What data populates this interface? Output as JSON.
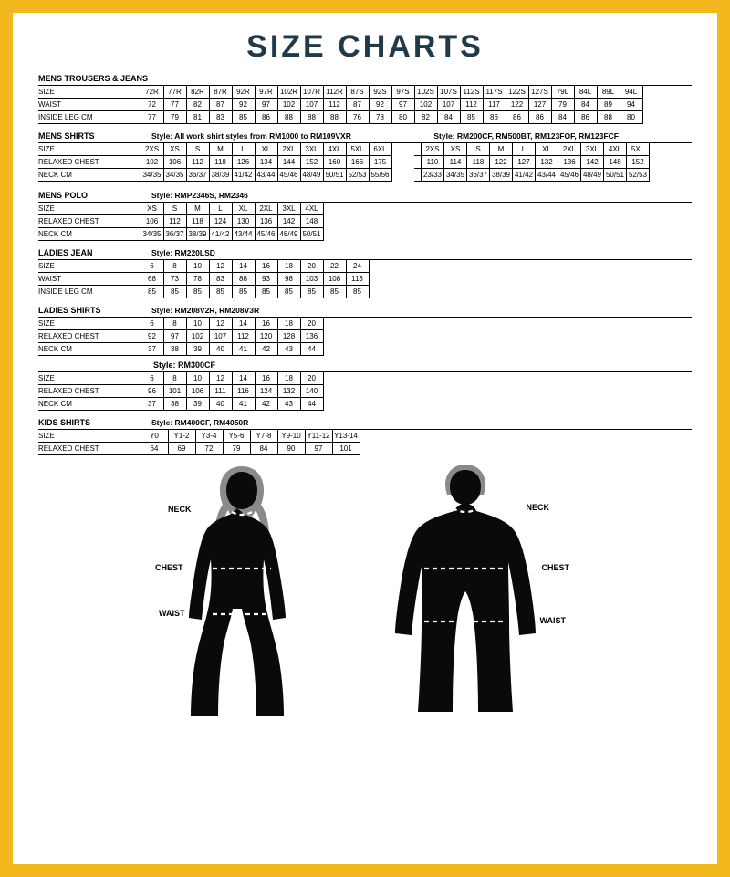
{
  "title": "SIZE CHARTS",
  "colors": {
    "border": "#f4b81f",
    "page_bg": "#ffffff",
    "title": "#203a4a",
    "line": "#000000",
    "silhouette": "#0a0a0a",
    "hair": "#8b8a8a",
    "dash": "#ffffff"
  },
  "mens_trousers": {
    "title": "MENS TROUSERS & JEANS",
    "rows": [
      {
        "label": "SIZE",
        "vals": [
          "72R",
          "77R",
          "82R",
          "87R",
          "92R",
          "97R",
          "102R",
          "107R",
          "112R",
          "87S",
          "92S",
          "97S",
          "102S",
          "107S",
          "112S",
          "117S",
          "122S",
          "127S",
          "79L",
          "84L",
          "89L",
          "94L"
        ]
      },
      {
        "label": "WAIST",
        "vals": [
          "72",
          "77",
          "82",
          "87",
          "92",
          "97",
          "102",
          "107",
          "112",
          "87",
          "92",
          "97",
          "102",
          "107",
          "112",
          "117",
          "122",
          "127",
          "79",
          "84",
          "89",
          "94"
        ]
      },
      {
        "label": "INSIDE LEG CM",
        "vals": [
          "77",
          "79",
          "81",
          "83",
          "85",
          "86",
          "88",
          "88",
          "88",
          "76",
          "78",
          "80",
          "82",
          "84",
          "85",
          "86",
          "86",
          "86",
          "84",
          "86",
          "88",
          "80"
        ]
      }
    ]
  },
  "mens_shirts": {
    "title": "MENS SHIRTS",
    "style1": "Style: All work shirt styles from RM1000 to RM109VXR",
    "style2": "Style: RM200CF, RM500BT, RM123FOF, RM123FCF",
    "table1": [
      {
        "label": "SIZE",
        "vals": [
          "2XS",
          "XS",
          "S",
          "M",
          "L",
          "XL",
          "2XL",
          "3XL",
          "4XL",
          "5XL",
          "6XL"
        ]
      },
      {
        "label": "RELAXED CHEST",
        "vals": [
          "102",
          "106",
          "112",
          "118",
          "126",
          "134",
          "144",
          "152",
          "160",
          "166",
          "175"
        ]
      },
      {
        "label": "NECK CM",
        "vals": [
          "34/35",
          "34/35",
          "36/37",
          "38/39",
          "41/42",
          "43/44",
          "45/46",
          "48/49",
          "50/51",
          "52/53",
          "55/56"
        ]
      }
    ],
    "table2": [
      {
        "label": "",
        "vals": [
          "2XS",
          "XS",
          "S",
          "M",
          "L",
          "XL",
          "2XL",
          "3XL",
          "4XL",
          "5XL"
        ]
      },
      {
        "label": "",
        "vals": [
          "110",
          "114",
          "118",
          "122",
          "127",
          "132",
          "136",
          "142",
          "148",
          "152"
        ]
      },
      {
        "label": "",
        "vals": [
          "23/33",
          "34/35",
          "36/37",
          "38/39",
          "41/42",
          "43/44",
          "45/46",
          "48/49",
          "50/51",
          "52/53"
        ]
      }
    ]
  },
  "mens_polo": {
    "title": "MENS POLO",
    "style": "Style: RMP2346S, RM2346",
    "rows": [
      {
        "label": "SIZE",
        "vals": [
          "XS",
          "S",
          "M",
          "L",
          "XL",
          "2XL",
          "3XL",
          "4XL"
        ]
      },
      {
        "label": "RELAXED CHEST",
        "vals": [
          "106",
          "112",
          "118",
          "124",
          "130",
          "136",
          "142",
          "148"
        ]
      },
      {
        "label": "NECK CM",
        "vals": [
          "34/35",
          "36/37",
          "38/39",
          "41/42",
          "43/44",
          "45/46",
          "48/49",
          "50/51"
        ]
      }
    ]
  },
  "ladies_jean": {
    "title": "LADIES JEAN",
    "style": "Style: RM220LSD",
    "rows": [
      {
        "label": "SIZE",
        "vals": [
          "6",
          "8",
          "10",
          "12",
          "14",
          "16",
          "18",
          "20",
          "22",
          "24"
        ]
      },
      {
        "label": "WAIST",
        "vals": [
          "68",
          "73",
          "78",
          "83",
          "88",
          "93",
          "98",
          "103",
          "108",
          "113"
        ]
      },
      {
        "label": "INSIDE LEG CM",
        "vals": [
          "85",
          "85",
          "85",
          "85",
          "85",
          "85",
          "85",
          "85",
          "85",
          "85"
        ]
      }
    ]
  },
  "ladies_shirts": {
    "title": "LADIES SHIRTS",
    "style1": "Style: RM208V2R, RM208V3R",
    "rows1": [
      {
        "label": "SIZE",
        "vals": [
          "6",
          "8",
          "10",
          "12",
          "14",
          "16",
          "18",
          "20"
        ]
      },
      {
        "label": "RELAXED CHEST",
        "vals": [
          "92",
          "97",
          "102",
          "107",
          "112",
          "120",
          "128",
          "136"
        ]
      },
      {
        "label": "NECK CM",
        "vals": [
          "37",
          "38",
          "39",
          "40",
          "41",
          "42",
          "43",
          "44"
        ]
      }
    ],
    "style2": "Style: RM300CF",
    "rows2": [
      {
        "label": "SIZE",
        "vals": [
          "6",
          "8",
          "10",
          "12",
          "14",
          "16",
          "18",
          "20"
        ]
      },
      {
        "label": "RELAXED CHEST",
        "vals": [
          "96",
          "101",
          "106",
          "111",
          "116",
          "124",
          "132",
          "140"
        ]
      },
      {
        "label": "NECK CM",
        "vals": [
          "37",
          "38",
          "39",
          "40",
          "41",
          "42",
          "43",
          "44"
        ]
      }
    ]
  },
  "kids_shirts": {
    "title": "KIDS SHIRTS",
    "style": "Style: RM400CF, RM4050R",
    "rows": [
      {
        "label": "SIZE",
        "vals": [
          "Y0",
          "Y1-2",
          "Y3-4",
          "Y5-6",
          "Y7-8",
          "Y9-10",
          "Y11-12",
          "Y13-14"
        ]
      },
      {
        "label": "RELAXED CHEST",
        "vals": [
          "64",
          "69",
          "72",
          "79",
          "84",
          "90",
          "97",
          "101"
        ]
      }
    ]
  },
  "figure_labels": {
    "neck": "NECK",
    "chest": "CHEST",
    "waist": "WAIST"
  }
}
